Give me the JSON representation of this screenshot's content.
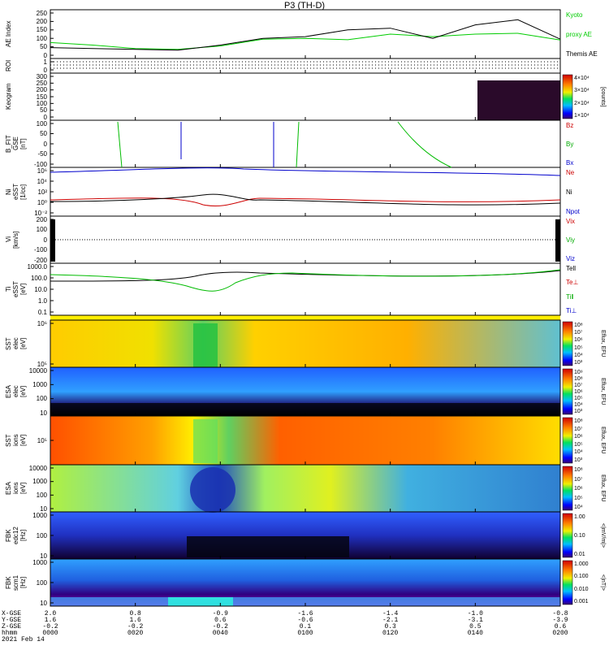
{
  "title": "P3 (TH-D)",
  "panels": [
    {
      "id": "ae",
      "ylabel": [
        "AE Index"
      ],
      "ticks": [
        "250",
        "200",
        "150",
        "100",
        "50",
        "0"
      ],
      "legend": [
        {
          "text": "Kyoto",
          "color": "#00cc00"
        },
        {
          "text": "proxy AE",
          "color": "#00cc00"
        },
        {
          "text": "Themis AE",
          "color": "#000000"
        }
      ]
    },
    {
      "id": "roi",
      "ylabel": [
        "ROI"
      ],
      "ticks": [
        "1",
        "0"
      ]
    },
    {
      "id": "keogram",
      "ylabel": [
        "Keogram"
      ],
      "ticks": [
        "300",
        "250",
        "200",
        "150",
        "100",
        "50",
        "0"
      ],
      "colorbar": {
        "ticks": [
          "4×10⁴",
          "3×10⁴",
          "2×10⁴",
          "1×10⁴"
        ],
        "label": "[counts]"
      }
    },
    {
      "id": "bfit",
      "ylabel": [
        "B_FIT",
        "GSE",
        "[nT]"
      ],
      "ticks": [
        "100",
        "50",
        "0",
        "-50",
        "-100"
      ],
      "legend": [
        {
          "text": "Bz",
          "color": "#cc0000"
        },
        {
          "text": "By",
          "color": "#00aa00"
        },
        {
          "text": "Bx",
          "color": "#0000cc"
        }
      ]
    },
    {
      "id": "ni",
      "ylabel": [
        "Ni",
        "eSST",
        "[1/cc]"
      ],
      "ticks": [
        "10⁶",
        "10⁴",
        "10²",
        "10⁰",
        "10⁻²"
      ],
      "legend": [
        {
          "text": "Ne",
          "color": "#cc0000"
        },
        {
          "text": "Ni",
          "color": "#000000"
        },
        {
          "text": "Npot",
          "color": "#0000cc"
        }
      ]
    },
    {
      "id": "vi",
      "ylabel": [
        "Vi",
        "[km/s]"
      ],
      "ticks": [
        "200",
        "100",
        "0",
        "-100",
        "-200"
      ],
      "legend": [
        {
          "text": "Vix",
          "color": "#cc0000"
        },
        {
          "text": "Viy",
          "color": "#00aa00"
        },
        {
          "text": "Viz",
          "color": "#0000cc"
        }
      ]
    },
    {
      "id": "ti",
      "ylabel": [
        "Ti",
        "eSST",
        "[eV]"
      ],
      "ticks": [
        "1000.0",
        "100.0",
        "10.0",
        "1.0",
        "0.1"
      ],
      "legend": [
        {
          "text": "Tell",
          "color": "#000000"
        },
        {
          "text": "Te⊥",
          "color": "#cc0000"
        },
        {
          "text": "Ti‖",
          "color": "#00aa00"
        },
        {
          "text": "Ti⊥",
          "color": "#0000cc"
        }
      ]
    },
    {
      "id": "sst_e",
      "ylabel": [
        "SST",
        "elec",
        "[eV]"
      ],
      "ticks": [
        "10⁶",
        "10⁵"
      ],
      "colorbar": {
        "ticks": [
          "10⁸",
          "10⁷",
          "10⁶",
          "10⁵",
          "10⁴",
          "10³"
        ],
        "label": "Eflux, EFU"
      }
    },
    {
      "id": "esa_e",
      "ylabel": [
        "ESA",
        "elec",
        "[eV]"
      ],
      "ticks": [
        "10000",
        "1000",
        "100",
        "10"
      ],
      "colorbar": {
        "ticks": [
          "10⁹",
          "10⁸",
          "10⁷",
          "10⁶",
          "10⁵",
          "10⁴",
          "10³"
        ],
        "label": "Eflux, EFU"
      }
    },
    {
      "id": "sst_i",
      "ylabel": [
        "SST",
        "ions",
        "[eV]"
      ],
      "ticks": [
        "10⁵"
      ],
      "colorbar": {
        "ticks": [
          "10⁸",
          "10⁷",
          "10⁶",
          "10⁵",
          "10⁴",
          "10³"
        ],
        "label": "Eflux, EFU"
      }
    },
    {
      "id": "esa_i",
      "ylabel": [
        "ESA",
        "ions",
        "[eV]"
      ],
      "ticks": [
        "10000",
        "1000",
        "100",
        "10"
      ],
      "colorbar": {
        "ticks": [
          "10⁸",
          "10⁷",
          "10⁶",
          "10⁵",
          "10⁴"
        ],
        "label": "Eflux, EFU"
      }
    },
    {
      "id": "fbk_e",
      "ylabel": [
        "FBK",
        "edc12",
        "[Hz]"
      ],
      "ticks": [
        "1000",
        "100",
        "10"
      ],
      "colorbar": {
        "ticks": [
          "1.00",
          "0.10",
          "0.01"
        ],
        "label": "<|mV/m|>"
      }
    },
    {
      "id": "fbk_b",
      "ylabel": [
        "FBK",
        "scm1",
        "[Hz]"
      ],
      "ticks": [
        "1000",
        "100",
        "10"
      ],
      "colorbar": {
        "ticks": [
          "1.000",
          "0.100",
          "0.010",
          "0.001"
        ],
        "label": "<|nT|>"
      }
    }
  ],
  "footer": {
    "row_labels": [
      "X-GSE",
      "Y-GSE",
      "Z-GSE",
      "hhmm",
      "2021 Feb 14"
    ],
    "columns": [
      {
        "x": "2.0",
        "y": "1.6",
        "z": "-0.2",
        "t": "0000"
      },
      {
        "x": "0.8",
        "y": "1.6",
        "z": "-0.2",
        "t": "0020"
      },
      {
        "x": "-0.9",
        "y": "0.6",
        "z": "-0.2",
        "t": "0040"
      },
      {
        "x": "-1.6",
        "y": "-0.6",
        "z": "0.1",
        "t": "0100"
      },
      {
        "x": "-1.4",
        "y": "-2.1",
        "z": "0.3",
        "t": "0120"
      },
      {
        "x": "-1.0",
        "y": "-3.1",
        "z": "0.5",
        "t": "0140"
      },
      {
        "x": "-0.8",
        "y": "-3.9",
        "z": "0.6",
        "t": "0200"
      }
    ]
  },
  "chart_data": {
    "type": "line",
    "x_range": [
      "0000",
      "0200"
    ],
    "series": [
      {
        "name": "Kyoto proxy AE",
        "color": "#00cc00",
        "x": [
          0,
          10,
          20,
          30,
          40,
          50,
          60,
          70,
          80,
          90,
          100,
          110,
          120
        ],
        "values": [
          75,
          60,
          40,
          35,
          55,
          95,
          100,
          92,
          125,
          110,
          125,
          130,
          90
        ]
      },
      {
        "name": "Themis AE",
        "color": "#000000",
        "x": [
          0,
          10,
          20,
          30,
          40,
          50,
          60,
          70,
          80,
          90,
          100,
          110,
          120
        ],
        "values": [
          45,
          40,
          35,
          30,
          60,
          100,
          110,
          150,
          160,
          100,
          180,
          210,
          95
        ]
      }
    ]
  }
}
